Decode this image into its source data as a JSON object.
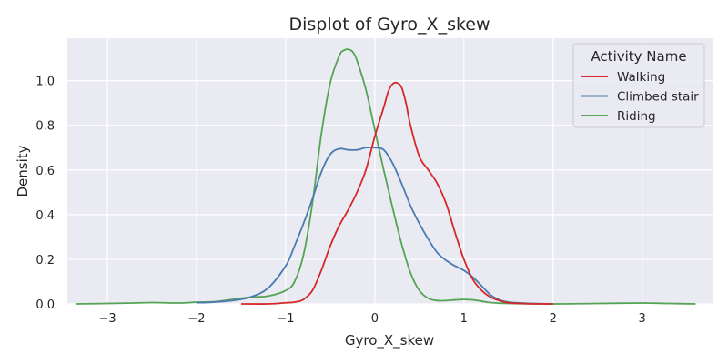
{
  "chart_data": {
    "type": "line",
    "title": "Displot of Gyro_X_skew",
    "xlabel": "Gyro_X_skew",
    "ylabel": "Density",
    "xlim": [
      -3.45,
      3.8
    ],
    "ylim": [
      0,
      1.19
    ],
    "xticks": [
      -3,
      -2,
      -1,
      0,
      1,
      2,
      3
    ],
    "xtick_labels": [
      "−3",
      "−2",
      "−1",
      "0",
      "1",
      "2",
      "3"
    ],
    "yticks": [
      0,
      0.2,
      0.4,
      0.6,
      0.8,
      1.0
    ],
    "ytick_labels": [
      "0.0",
      "0.2",
      "0.4",
      "0.6",
      "0.8",
      "1.0"
    ],
    "grid": true,
    "legend": {
      "title": "Activity Name",
      "placement": "top-right"
    },
    "series": [
      {
        "name": "Walking",
        "color": "#d62728",
        "x": [
          -1.5,
          -1.2,
          -1.0,
          -0.9,
          -0.8,
          -0.7,
          -0.6,
          -0.5,
          -0.4,
          -0.3,
          -0.2,
          -0.1,
          0.0,
          0.1,
          0.15,
          0.2,
          0.25,
          0.3,
          0.35,
          0.4,
          0.5,
          0.6,
          0.7,
          0.8,
          0.9,
          1.0,
          1.1,
          1.2,
          1.3,
          1.4,
          1.5,
          1.7,
          2.0
        ],
        "y": [
          0.0,
          0.0,
          0.005,
          0.008,
          0.02,
          0.06,
          0.15,
          0.26,
          0.35,
          0.42,
          0.5,
          0.6,
          0.75,
          0.88,
          0.95,
          0.985,
          0.99,
          0.97,
          0.9,
          0.8,
          0.66,
          0.6,
          0.54,
          0.45,
          0.32,
          0.2,
          0.11,
          0.06,
          0.03,
          0.015,
          0.005,
          0.001,
          0.0
        ]
      },
      {
        "name": "Climbed stair",
        "color": "#4a7bb0",
        "x": [
          -2.0,
          -1.8,
          -1.6,
          -1.4,
          -1.2,
          -1.0,
          -0.9,
          -0.8,
          -0.7,
          -0.6,
          -0.5,
          -0.4,
          -0.3,
          -0.2,
          -0.1,
          0.0,
          0.1,
          0.2,
          0.3,
          0.4,
          0.5,
          0.6,
          0.7,
          0.8,
          0.9,
          1.0,
          1.1,
          1.2,
          1.3,
          1.4,
          1.5,
          1.7,
          2.0
        ],
        "y": [
          0.005,
          0.008,
          0.015,
          0.03,
          0.07,
          0.17,
          0.26,
          0.36,
          0.47,
          0.59,
          0.67,
          0.695,
          0.69,
          0.69,
          0.7,
          0.7,
          0.69,
          0.63,
          0.54,
          0.44,
          0.36,
          0.29,
          0.23,
          0.195,
          0.17,
          0.15,
          0.12,
          0.08,
          0.04,
          0.018,
          0.008,
          0.003,
          0.0
        ]
      },
      {
        "name": "Riding",
        "color": "#55a355",
        "x": [
          -3.35,
          -3.0,
          -2.7,
          -2.5,
          -2.2,
          -2.0,
          -1.8,
          -1.6,
          -1.4,
          -1.2,
          -1.0,
          -0.9,
          -0.8,
          -0.7,
          -0.6,
          -0.5,
          -0.4,
          -0.35,
          -0.3,
          -0.25,
          -0.2,
          -0.1,
          0.0,
          0.1,
          0.2,
          0.3,
          0.4,
          0.5,
          0.6,
          0.7,
          0.8,
          0.9,
          1.0,
          1.1,
          1.2,
          1.3,
          1.5,
          2.0,
          2.5,
          3.0,
          3.3,
          3.6
        ],
        "y": [
          0.0,
          0.002,
          0.004,
          0.006,
          0.004,
          0.008,
          0.01,
          0.02,
          0.03,
          0.035,
          0.06,
          0.1,
          0.22,
          0.45,
          0.76,
          0.99,
          1.11,
          1.135,
          1.14,
          1.13,
          1.09,
          0.96,
          0.78,
          0.6,
          0.43,
          0.27,
          0.14,
          0.06,
          0.025,
          0.015,
          0.015,
          0.018,
          0.02,
          0.018,
          0.012,
          0.006,
          0.002,
          0.0,
          0.002,
          0.004,
          0.002,
          0.0
        ]
      }
    ]
  }
}
